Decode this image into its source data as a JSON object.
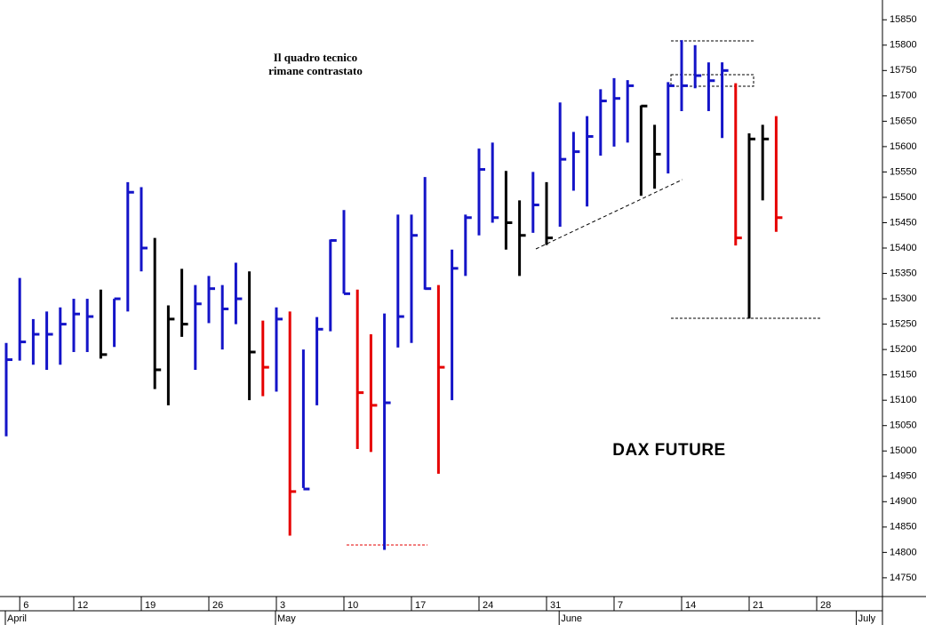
{
  "chart_data": {
    "type": "ohlc",
    "title": "DAX FUTURE",
    "annotations": [
      "Il quadro tecnico",
      "rimane contrastato"
    ],
    "categories": [
      null,
      "6",
      null,
      null,
      null,
      "12",
      null,
      null,
      null,
      null,
      "19",
      null,
      null,
      null,
      null,
      "26",
      null,
      null,
      null,
      null,
      "3",
      null,
      null,
      null,
      null,
      "10",
      null,
      null,
      null,
      null,
      "17",
      null,
      null,
      null,
      null,
      "24",
      null,
      null,
      null,
      null,
      "31",
      null,
      null,
      null,
      null,
      "7",
      null,
      null,
      null,
      null,
      "14",
      null,
      null,
      null,
      null,
      "21",
      null,
      null,
      null,
      null,
      "28",
      null,
      null,
      null
    ],
    "months": [
      "April",
      null,
      null,
      null,
      null,
      null,
      null,
      null,
      null,
      null,
      null,
      null,
      null,
      null,
      null,
      null,
      null,
      null,
      null,
      null,
      "May",
      null,
      null,
      null,
      null,
      null,
      null,
      null,
      null,
      null,
      null,
      null,
      null,
      null,
      null,
      null,
      null,
      null,
      null,
      null,
      null,
      "June",
      null,
      null,
      null,
      null,
      null,
      null,
      null,
      null,
      null,
      null,
      null,
      null,
      null,
      null,
      null,
      null,
      null,
      null,
      null,
      null,
      null,
      "July"
    ],
    "high": [
      15213,
      15341,
      15260,
      15275,
      15283,
      15300,
      15300,
      15318,
      15300,
      15530,
      15520,
      15420,
      15287,
      15359,
      15327,
      15345,
      15327,
      15371,
      15354,
      15257,
      15283,
      15275,
      15200,
      15264,
      15417,
      15475,
      15318,
      15230,
      15271,
      15466,
      15466,
      15540,
      15327,
      15397,
      15466,
      15596,
      15608,
      15552,
      15494,
      15550,
      15530,
      15687,
      15629,
      15660,
      15713,
      15735,
      15731,
      15681,
      15643,
      15727,
      15810,
      15800,
      15766,
      15766,
      15725,
      15626,
      15643,
      15660,
      null,
      null,
      null,
      null,
      null,
      null
    ],
    "low": [
      15029,
      15178,
      15170,
      15160,
      15170,
      15195,
      15195,
      15182,
      15205,
      15275,
      15354,
      15122,
      15090,
      15225,
      15160,
      15252,
      15200,
      15250,
      15100,
      15108,
      15117,
      14833,
      14927,
      15090,
      15236,
      15310,
      15004,
      14998,
      14805,
      15204,
      15213,
      15318,
      14955,
      15100,
      15345,
      15425,
      15450,
      15397,
      15345,
      15430,
      15406,
      15442,
      15513,
      15482,
      15582,
      15600,
      15608,
      15503,
      15517,
      15547,
      15670,
      15715,
      15670,
      15617,
      15405,
      15261,
      15494,
      15432,
      null,
      null,
      null,
      null,
      null,
      null
    ],
    "close": [
      15180,
      15215,
      15230,
      15230,
      15250,
      15270,
      15265,
      15190,
      15300,
      15510,
      15400,
      15160,
      15260,
      15250,
      15290,
      15320,
      15280,
      15300,
      15195,
      15165,
      15260,
      14920,
      14925,
      15240,
      15415,
      15310,
      15115,
      15090,
      15095,
      15265,
      15425,
      15320,
      15165,
      15360,
      15460,
      15555,
      15460,
      15450,
      15425,
      15485,
      15420,
      15575,
      15590,
      15620,
      15690,
      15695,
      15720,
      15680,
      15585,
      15720,
      15720,
      15740,
      15730,
      15750,
      15420,
      15615,
      15615,
      15460,
      null,
      null,
      null,
      null,
      null,
      null
    ],
    "colors": [
      "#1414c8",
      "#1414c8",
      "#1414c8",
      "#1414c8",
      "#1414c8",
      "#1414c8",
      "#1414c8",
      "#000000",
      "#1414c8",
      "#1414c8",
      "#1414c8",
      "#000000",
      "#000000",
      "#000000",
      "#1414c8",
      "#1414c8",
      "#1414c8",
      "#1414c8",
      "#000000",
      "#e60000",
      "#1414c8",
      "#e60000",
      "#1414c8",
      "#1414c8",
      "#1414c8",
      "#1414c8",
      "#e60000",
      "#e60000",
      "#1414c8",
      "#1414c8",
      "#1414c8",
      "#1414c8",
      "#e60000",
      "#1414c8",
      "#1414c8",
      "#1414c8",
      "#1414c8",
      "#000000",
      "#000000",
      "#1414c8",
      "#000000",
      "#1414c8",
      "#1414c8",
      "#1414c8",
      "#1414c8",
      "#1414c8",
      "#1414c8",
      "#000000",
      "#000000",
      "#1414c8",
      "#1414c8",
      "#1414c8",
      "#1414c8",
      "#1414c8",
      "#e60000",
      "#000000",
      "#000000",
      "#e60000",
      null,
      null,
      null,
      null,
      null,
      null
    ],
    "ylim": [
      14713,
      15889
    ],
    "yticks": [
      14750,
      14800,
      14850,
      14900,
      14950,
      15000,
      15050,
      15100,
      15150,
      15200,
      15250,
      15300,
      15350,
      15400,
      15450,
      15500,
      15550,
      15600,
      15650,
      15700,
      15750,
      15800,
      15850
    ]
  }
}
